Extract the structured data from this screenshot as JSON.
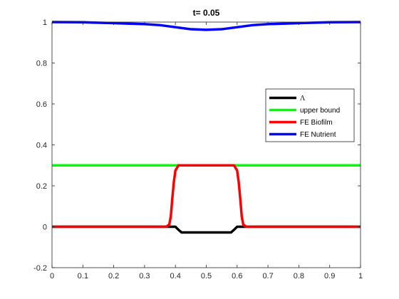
{
  "chart_data": {
    "type": "line",
    "title": "t=  0.05",
    "xlabel": "",
    "ylabel": "",
    "xlim": [
      0,
      1
    ],
    "ylim": [
      -0.2,
      1
    ],
    "x_ticks": [
      0,
      0.1,
      0.2,
      0.3,
      0.4,
      0.5,
      0.6,
      0.7,
      0.8,
      0.9,
      1
    ],
    "x_tick_labels": [
      "0",
      "0.1",
      "0.2",
      "0.3",
      "0.4",
      "0.5",
      "0.6",
      "0.7",
      "0.8",
      "0.9",
      "1"
    ],
    "y_ticks": [
      -0.2,
      0,
      0.2,
      0.4,
      0.6,
      0.8,
      1
    ],
    "y_tick_labels": [
      "-0.2",
      "0",
      "0.2",
      "0.4",
      "0.6",
      "0.8",
      "1"
    ],
    "grid": false,
    "legend_position": "right",
    "series": [
      {
        "name": "Λ",
        "color": "#000000",
        "x": [
          0,
          0.37,
          0.38,
          0.39,
          0.4,
          0.41,
          0.42,
          0.58,
          0.59,
          0.6,
          0.61,
          0.62,
          0.63,
          1
        ],
        "y": [
          0,
          0,
          0,
          0,
          0,
          -0.015,
          -0.028,
          -0.028,
          -0.015,
          0,
          0,
          0,
          0,
          0
        ]
      },
      {
        "name": "upper bound",
        "color": "#00ff00",
        "x": [
          0,
          1
        ],
        "y": [
          0.3,
          0.3
        ]
      },
      {
        "name": "FE Biofilm",
        "color": "#ff0000",
        "x": [
          0,
          0.37,
          0.38,
          0.385,
          0.39,
          0.395,
          0.4,
          0.41,
          0.42,
          0.58,
          0.59,
          0.6,
          0.605,
          0.61,
          0.615,
          0.62,
          0.63,
          1
        ],
        "y": [
          0,
          0,
          0.01,
          0.05,
          0.14,
          0.22,
          0.275,
          0.3,
          0.3,
          0.3,
          0.3,
          0.275,
          0.22,
          0.14,
          0.05,
          0.01,
          0,
          0
        ]
      },
      {
        "name": "FE Nutrient",
        "color": "#0000ff",
        "x": [
          0,
          0.1,
          0.2,
          0.3,
          0.35,
          0.4,
          0.45,
          0.5,
          0.55,
          0.6,
          0.65,
          0.7,
          0.8,
          0.9,
          1
        ],
        "y": [
          1,
          0.999,
          0.995,
          0.99,
          0.985,
          0.975,
          0.965,
          0.962,
          0.965,
          0.975,
          0.985,
          0.99,
          0.995,
          0.999,
          1
        ]
      }
    ]
  }
}
